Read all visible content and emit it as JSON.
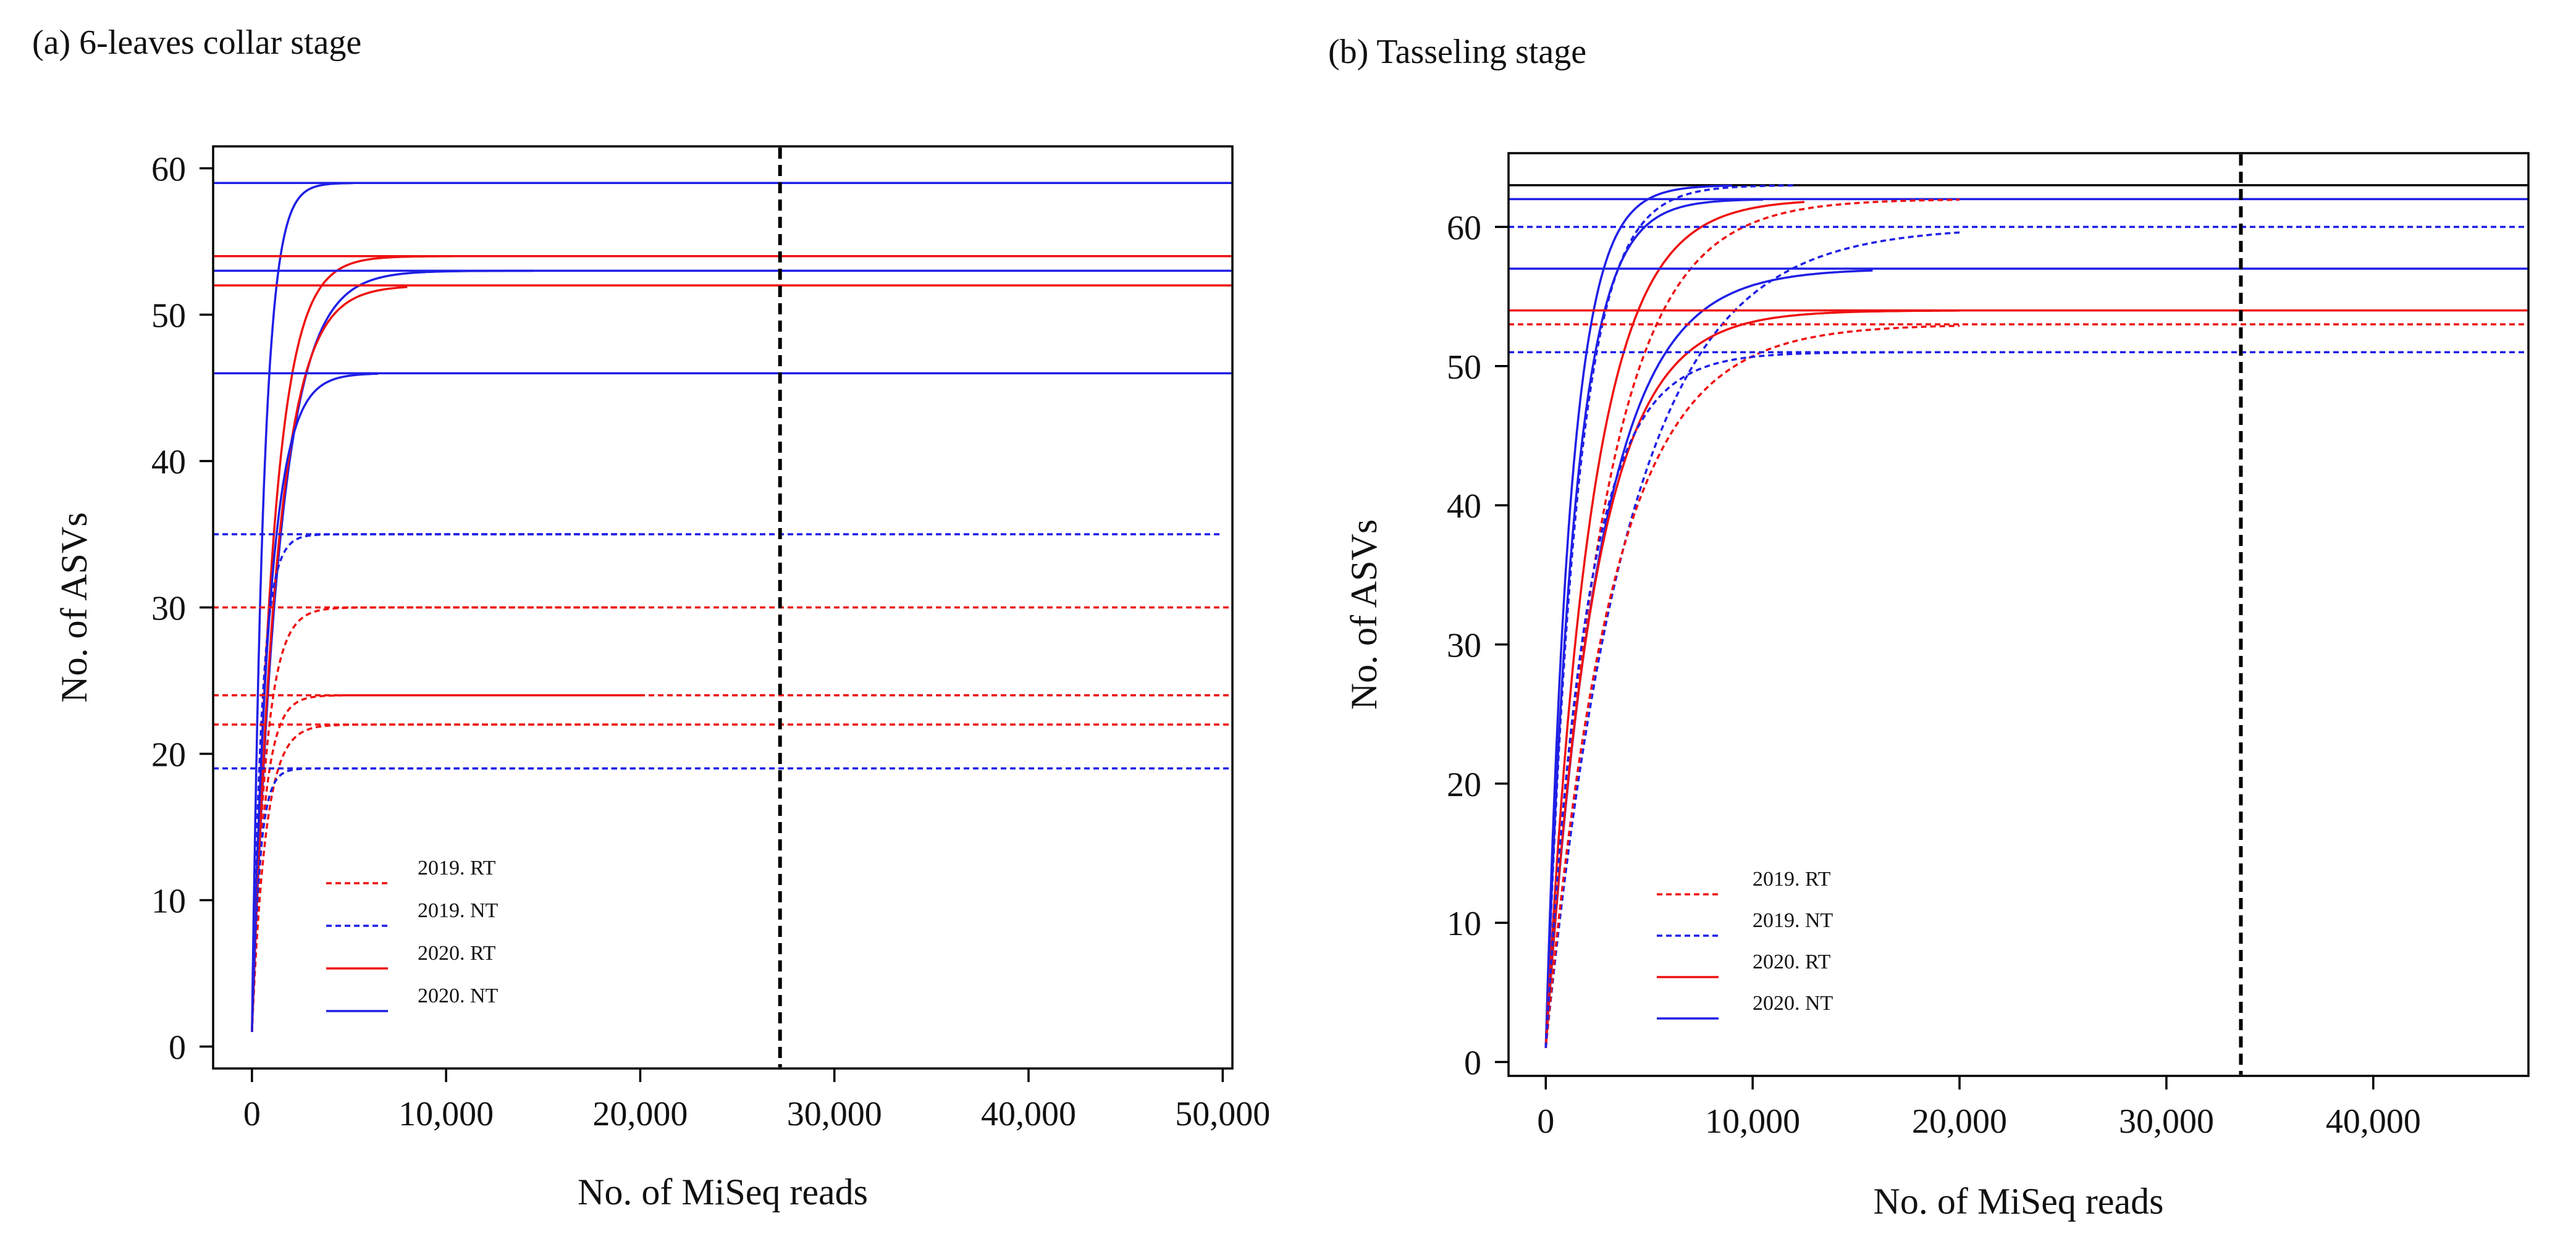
{
  "colors": {
    "rt": "#ee1111",
    "nt": "#1f1fe6",
    "ref": "#000000",
    "cutoff": "#000000",
    "axis": "#000000"
  },
  "chart_data": [
    {
      "type": "line",
      "title": "(a) 6-leaves collar stage",
      "xlabel": "No. of MiSeq reads",
      "ylabel": "No. of ASVs",
      "xlim": [
        -2000,
        50500
      ],
      "ylim": [
        -1.5,
        61.5
      ],
      "xticks": [
        0,
        10000,
        20000,
        30000,
        40000,
        50000
      ],
      "xtick_labels": [
        "0",
        "10,000",
        "20,000",
        "30,000",
        "40,000",
        "50,000"
      ],
      "yticks": [
        0,
        10,
        20,
        30,
        40,
        50,
        60
      ],
      "ytick_labels": [
        "0",
        "10",
        "20",
        "30",
        "40",
        "50",
        "60"
      ],
      "cutoff_x": 27200,
      "legend_position": "lower-left",
      "legend": [
        {
          "label": "2019. RT",
          "group": "rt",
          "style": "dashed"
        },
        {
          "label": "2019. NT",
          "group": "nt",
          "style": "dashed"
        },
        {
          "label": "2020. RT",
          "group": "rt",
          "style": "solid"
        },
        {
          "label": "2020. NT",
          "group": "nt",
          "style": "solid"
        }
      ],
      "series": [
        {
          "name": "2020. NT",
          "group": "nt",
          "style": "solid",
          "asymptote": 59,
          "max_reads": 5200,
          "k": 600,
          "hline_x": [
            -2000,
            50500
          ]
        },
        {
          "name": "2020. RT",
          "group": "rt",
          "style": "solid",
          "asymptote": 54,
          "max_reads": 10800,
          "k": 1100,
          "hline_x": [
            -2000,
            50500
          ]
        },
        {
          "name": "2020. NT",
          "group": "nt",
          "style": "solid",
          "asymptote": 53,
          "max_reads": 14500,
          "k": 1400,
          "hline_x": [
            -2000,
            50500
          ]
        },
        {
          "name": "2020. RT",
          "group": "rt",
          "style": "solid",
          "asymptote": 52,
          "max_reads": 8000,
          "k": 1300,
          "hline_x": [
            -2000,
            50500
          ]
        },
        {
          "name": "2020. NT",
          "group": "nt",
          "style": "solid",
          "asymptote": 46,
          "max_reads": 6500,
          "k": 900,
          "hline_x": [
            -2000,
            50500
          ]
        },
        {
          "name": "2019. NT",
          "group": "nt",
          "style": "dashed",
          "asymptote": 35,
          "max_reads": 20000,
          "k": 500,
          "hline_x": [
            -2000,
            50000
          ]
        },
        {
          "name": "2019. RT",
          "group": "rt",
          "style": "dashed",
          "asymptote": 30,
          "max_reads": 20000,
          "k": 700,
          "hline_x": [
            -2000,
            50500
          ]
        },
        {
          "name": "2019. RT",
          "group": "rt",
          "style": "dashed",
          "asymptote": 24,
          "max_reads": 20000,
          "k": 600,
          "hline_x": [
            -2000,
            50500
          ]
        },
        {
          "name": "2019. RT",
          "group": "rt",
          "style": "dashed",
          "asymptote": 22,
          "max_reads": 20000,
          "k": 700,
          "hline_x": [
            -2000,
            50500
          ]
        },
        {
          "name": "2019. NT",
          "group": "nt",
          "style": "dashed",
          "asymptote": 19,
          "max_reads": 20000,
          "k": 400,
          "hline_x": [
            -2000,
            50500
          ]
        }
      ]
    },
    {
      "type": "line",
      "title": "(b) Tasseling stage",
      "xlabel": "No. of MiSeq reads",
      "ylabel": "No. of ASVs",
      "xlim": [
        -1800,
        47500
      ],
      "ylim": [
        -1,
        65.3
      ],
      "xticks": [
        0,
        10000,
        20000,
        30000,
        40000
      ],
      "xtick_labels": [
        "0",
        "10,000",
        "20,000",
        "30,000",
        "40,000"
      ],
      "yticks": [
        0,
        10,
        20,
        30,
        40,
        50,
        60
      ],
      "ytick_labels": [
        "0",
        "10",
        "20",
        "30",
        "40",
        "50",
        "60"
      ],
      "cutoff_x": 33600,
      "legend_position": "lower-left",
      "legend": [
        {
          "label": "2019. RT",
          "group": "rt",
          "style": "dashed"
        },
        {
          "label": "2019. NT",
          "group": "nt",
          "style": "dashed"
        },
        {
          "label": "2020. RT",
          "group": "rt",
          "style": "solid"
        },
        {
          "label": "2020. NT",
          "group": "nt",
          "style": "solid"
        }
      ],
      "series": [
        {
          "name": "reference",
          "group": "ref",
          "style": "solid",
          "asymptote": 63,
          "max_reads": 0,
          "k": 1000,
          "hline_x": [
            -1800,
            47500
          ]
        },
        {
          "name": "2020. NT",
          "group": "nt",
          "style": "solid",
          "asymptote": 63,
          "max_reads": 9000,
          "k": 1200,
          "hline_x": null
        },
        {
          "name": "2019. NT",
          "group": "nt",
          "style": "dashed",
          "asymptote": 63,
          "max_reads": 12000,
          "k": 1500,
          "hline_x": null
        },
        {
          "name": "2020. NT",
          "group": "nt",
          "style": "solid",
          "asymptote": 62,
          "max_reads": 10500,
          "k": 1400,
          "hline_x": [
            -1800,
            47500
          ]
        },
        {
          "name": "2020. RT",
          "group": "rt",
          "style": "solid",
          "asymptote": 62,
          "max_reads": 12500,
          "k": 2200,
          "hline_x": null
        },
        {
          "name": "2019. RT",
          "group": "rt",
          "style": "dashed",
          "asymptote": 62,
          "max_reads": 20000,
          "k": 2800,
          "hline_x": null
        },
        {
          "name": "2019. NT",
          "group": "nt",
          "style": "dashed",
          "asymptote": 60,
          "max_reads": 20000,
          "k": 4000,
          "hline_x": [
            -1800,
            47500
          ]
        },
        {
          "name": "2020. NT",
          "group": "nt",
          "style": "solid",
          "asymptote": 57,
          "max_reads": 15800,
          "k": 2600,
          "hline_x": [
            -1800,
            47500
          ]
        },
        {
          "name": "2020. RT",
          "group": "rt",
          "style": "solid",
          "asymptote": 54,
          "max_reads": 20000,
          "k": 2400,
          "hline_x": [
            -1800,
            47500
          ]
        },
        {
          "name": "2019. RT",
          "group": "rt",
          "style": "dashed",
          "asymptote": 53,
          "max_reads": 20000,
          "k": 3200,
          "hline_x": [
            -1800,
            47500
          ]
        },
        {
          "name": "2019. NT",
          "group": "nt",
          "style": "dashed",
          "asymptote": 51,
          "max_reads": 20000,
          "k": 2000,
          "hline_x": [
            -1800,
            47500
          ]
        }
      ]
    }
  ]
}
